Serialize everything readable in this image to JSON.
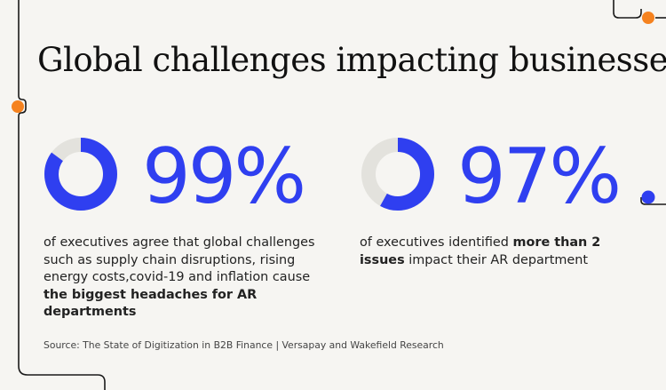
{
  "title": "Global challenges impacting businesses",
  "stats": [
    {
      "percent_value": 99,
      "percent_label": "99%",
      "text_before": "of executives agree that global challenges such as supply chain disruptions, rising energy costs,covid-19 and inflation cause ",
      "text_bold": "the biggest headaches for AR departments",
      "text_after": ""
    },
    {
      "percent_value": 97,
      "percent_label": "97%",
      "text_before": "of executives identified ",
      "text_bold": "more than 2 issues",
      "text_after": " impact their AR department"
    }
  ],
  "source": "Source: The State of Digitization in B2B Finance | Versapay and Wakefield Research",
  "colors": {
    "accent_blue": "#2f3ff0",
    "ring_track": "#e3e2dd",
    "dot_orange": "#f5821f",
    "dot_blue": "#2f3ff0",
    "background": "#f6f5f2"
  }
}
